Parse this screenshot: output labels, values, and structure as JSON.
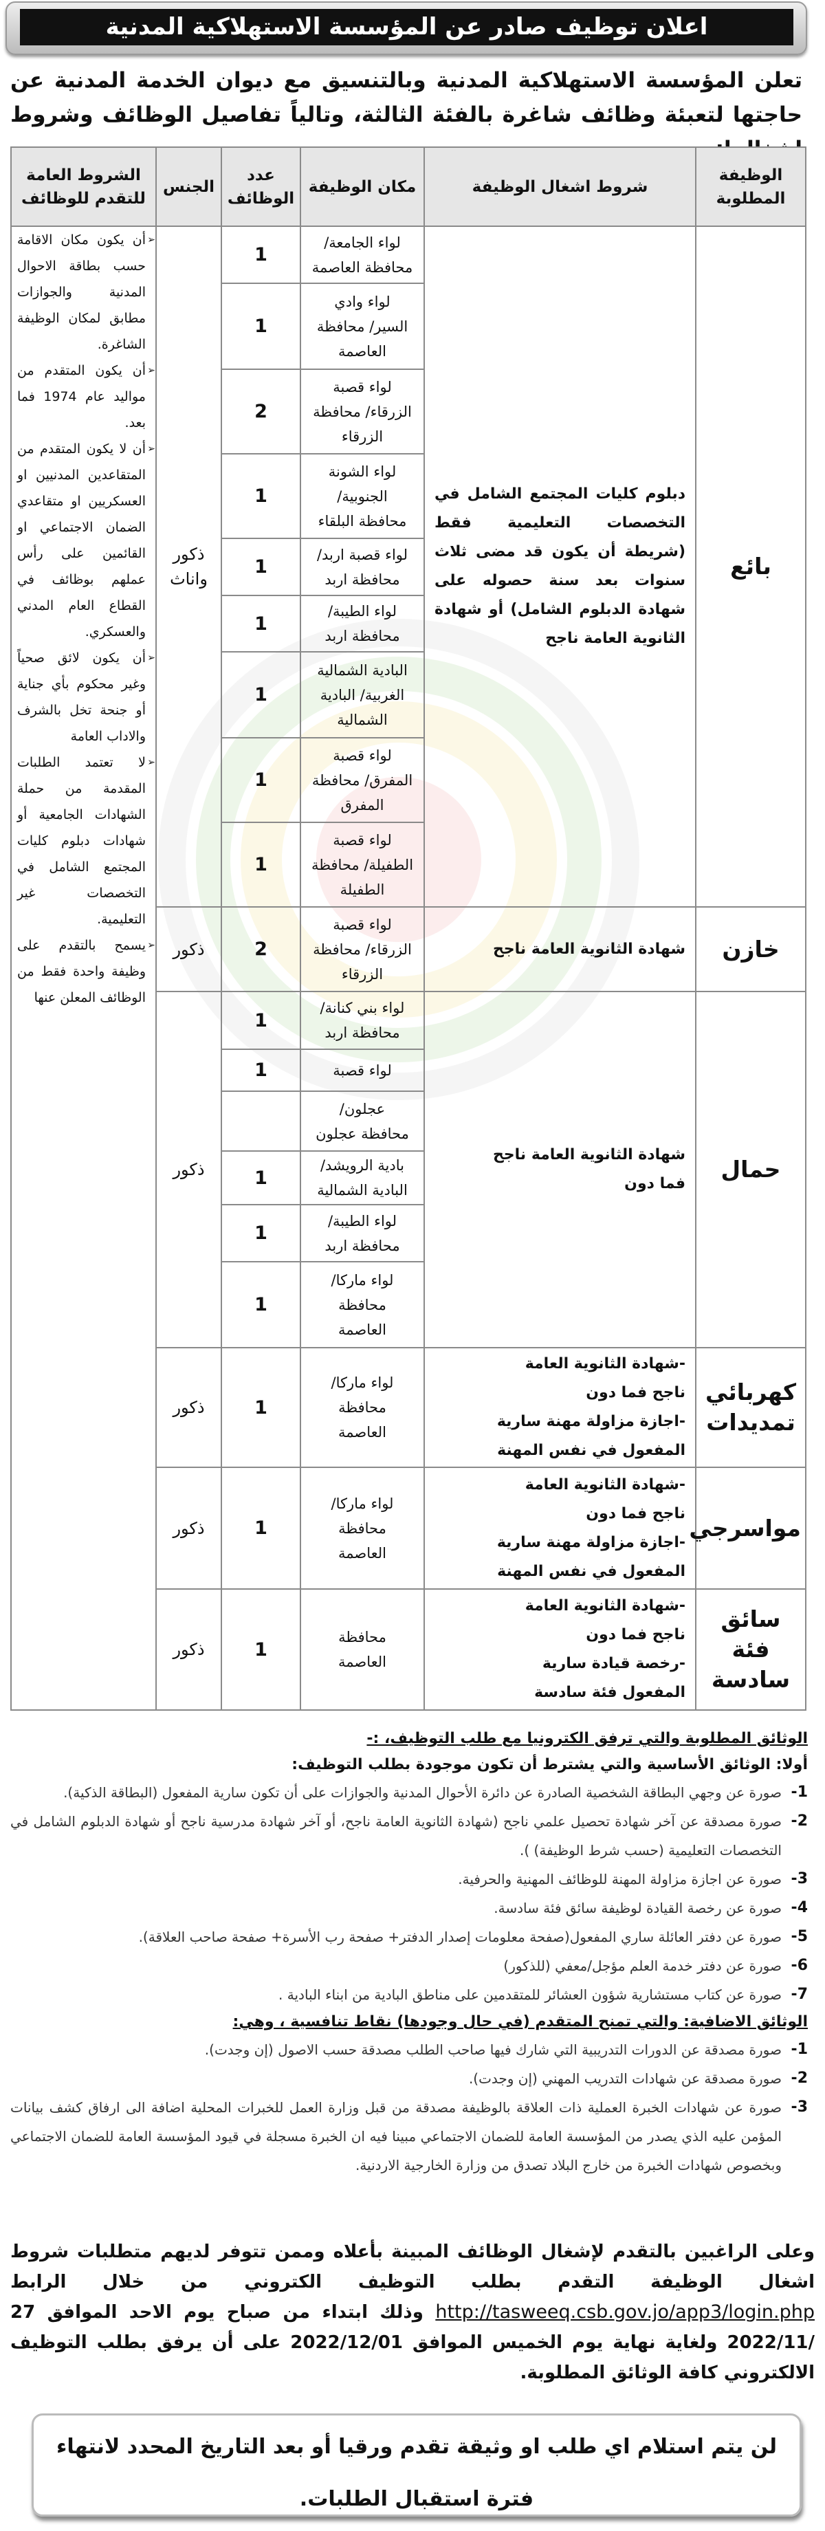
{
  "header": {
    "title": "اعلان توظيف صادر عن المؤسسة الاستهلاكية المدنية"
  },
  "intro": "تعلن المؤسسة الاستهلاكية المدنية وبالتنسيق مع ديوان الخدمة المدنية عن حاجتها لتعبئة وظائف شاغرة بالفئة الثالثة، وتالياً  تفاصيل الوظائف وشروط اشغالها:",
  "table": {
    "headers": {
      "job": "الوظيفة المطلوبة",
      "conditions": "شروط اشغال الوظيفة",
      "place": "مكان الوظيفة",
      "count": "عدد الوظائف",
      "gender": "الجنس",
      "general": "الشروط العامة للتقدم للوظائف"
    },
    "general_conditions": [
      "أن يكون مكان الاقامة حسب بطاقة الاحوال المدنية والجوازات مطابق لمكان الوظيفة الشاغرة.",
      "أن يكون المتقدم من مواليد عام 1974 فما بعد.",
      "أن لا يكون المتقدم من المتقاعدين المدنيين او العسكريين او متقاعدي الضمان الاجتماعي او القائمين على رأس عملهم بوظائف في القطاع العام المدني والعسكري.",
      "أن يكون لائق صحياً وغير محكوم بأي جناية أو جنحة تخل بالشرف والاداب العامة",
      "لا تعتمد الطلبات المقدمة من حملة الشهادات الجامعية أو شهادات دبلوم كليات المجتمع الشامل في التخصصات غير التعليمية.",
      "يسمح بالتقدم على وظيفة واحدة فقط من الوظائف المعلن عنها"
    ],
    "jobs": [
      {
        "title": "بائع",
        "conditions": "دبلوم كليات المجتمع الشامل في التخصصات التعليمية فقط (شريطة أن يكون قد مضى ثلاث سنوات بعد سنة حصوله على شهادة الدبلوم الشامل) أو شهادة الثانوية العامة ناجح",
        "gender": "ذكور\nواناث",
        "locations": [
          {
            "place": "لواء الجامعة/\nمحافظة العاصمة",
            "count": "1"
          },
          {
            "place": "لواء وادي\nالسير/ محافظة\nالعاصمة",
            "count": "1"
          },
          {
            "place": "لواء قصبة\nالزرقاء/ محافظة\nالزرقاء",
            "count": "2"
          },
          {
            "place": "لواء الشونة\nالجنوبية/\nمحافظة البلقاء",
            "count": "1"
          },
          {
            "place": "لواء قصبة اربد/\nمحافظة اربد",
            "count": "1"
          },
          {
            "place": "لواء الطيبة/\nمحافظة اربد",
            "count": "1"
          },
          {
            "place": "البادية الشمالية\nالغربية/ البادية\nالشمالية",
            "count": "1"
          },
          {
            "place": "لواء قصبة\nالمفرق/ محافظة\nالمفرق",
            "count": "1"
          },
          {
            "place": "لواء قصبة\nالطفيلة/ محافظة\nالطفيلة",
            "count": "1"
          }
        ]
      },
      {
        "title": "خازن",
        "conditions": "شهادة الثانوية العامة ناجح",
        "gender": "ذكور",
        "locations": [
          {
            "place": "لواء قصبة\nالزرقاء/ محافظة\nالزرقاء",
            "count": "2"
          }
        ]
      },
      {
        "title": "حمال",
        "conditions": "شهادة الثانوية العامة ناجح\nفما دون",
        "gender": "ذكور",
        "locations": [
          {
            "place": "لواء بني كنانة/\nمحافظة اربد",
            "count": "1"
          },
          {
            "place": "لواء قصبة",
            "count": "1"
          },
          {
            "place": "عجلون/\nمحافظة عجلون",
            "count": ""
          },
          {
            "place": "بادية الرويشد/\nالبادية الشمالية",
            "count": "1"
          },
          {
            "place": "لواء الطيبة/\nمحافظة اربد",
            "count": "1"
          },
          {
            "place": "لواء ماركا/\nمحافظة\nالعاصمة",
            "count": "1"
          }
        ]
      },
      {
        "title": "كهربائي\nتمديدات",
        "conditions": "-شهادة الثانوية العامة\nناجح فما دون\n-اجازة مزاولة مهنة سارية\nالمفعول في نفس المهنة",
        "gender": "ذكور",
        "locations": [
          {
            "place": "لواء ماركا/\nمحافظة\nالعاصمة",
            "count": "1"
          }
        ]
      },
      {
        "title": "مواسرجي",
        "conditions": "-شهادة الثانوية العامة\nناجح فما دون\n-اجازة مزاولة مهنة سارية\nالمفعول في نفس المهنة",
        "gender": "ذكور",
        "locations": [
          {
            "place": "لواء ماركا/\nمحافظة\nالعاصمة",
            "count": "1"
          }
        ]
      },
      {
        "title": "سائق فئة\nسادسة",
        "conditions": "-شهادة الثانوية العامة\nناجح فما دون\n-رخصة قيادة سارية\nالمفعول فئة سادسة",
        "gender": "ذكور",
        "locations": [
          {
            "place": "محافظة\nالعاصمة",
            "count": "1"
          }
        ]
      }
    ]
  },
  "documents": {
    "title": "الوثائق المطلوبة  والتي ترفق الكترونيا مع طلب التوظيف، :-",
    "basic_heading": "أولا: الوثائق الأساسية والتي يشترط أن تكون موجودة بطلب التوظيف:",
    "basic_items": [
      {
        "num": "1-",
        "text": "صورة عن وجهي البطاقة الشخصية الصادرة عن دائرة الأحوال المدنية والجوازات على أن تكون سارية المفعول (البطاقة الذكية)."
      },
      {
        "num": "2-",
        "text": "صورة مصدقة عن آخر شهادة تحصيل علمي ناجح (شهادة الثانوية العامة ناجح، أو آخر شهادة مدرسية ناجح أو شهادة الدبلوم الشامل في التخصصات التعليمية (حسب شرط الوظيفة) )."
      },
      {
        "num": "3-",
        "text": "صورة عن اجازة مزاولة المهنة للوظائف المهنية والحرفية."
      },
      {
        "num": "4-",
        "text": "صورة عن رخصة القيادة لوظيفة سائق فئة سادسة."
      },
      {
        "num": "5-",
        "text": "صورة عن دفتر العائلة ساري المفعول(صفحة معلومات إصدار الدفتر+ صفحة رب الأسرة+ صفحة صاحب العلاقة)."
      },
      {
        "num": "6-",
        "text": "صورة عن دفتر خدمة العلم مؤجل/معفي (للذكور)"
      },
      {
        "num": "7-",
        "text": "صورة عن كتاب مستشارية شؤون العشائر للمتقدمين على مناطق البادية من ابناء البادية ."
      }
    ],
    "additional_heading": "الوثائق الاضافية:  والتي تمنح المتقدم (في حال وجودها) نقاط تنافسية ، وهي:",
    "additional_items": [
      {
        "num": "1-",
        "text": "صورة مصدقة عن الدورات التدريبية التي شارك فيها صاحب الطلب مصدقة حسب الاصول (إن وجدت)."
      },
      {
        "num": "2-",
        "text": "صورة مصدقة عن شهادات التدريب المهني (إن وجدت)."
      },
      {
        "num": "3-",
        "text": "صورة عن شهادات الخبرة العملية ذات العلاقة بالوظيفة مصدقة من قبل وزارة العمل للخبرات المحلية اضافة الى ارفاق كشف بيانات المؤمن عليه الذي يصدر من المؤسسة العامة للضمان الاجتماعي مبينا فيه ان الخبرة مسجلة في قيود المؤسسة العامة للضمان الاجتماعي وبخصوص شهادات الخبرة من خارج البلاد تصدق من وزارة الخارجية الاردنية."
      }
    ]
  },
  "final": {
    "part1": "وعلى الراغبين بالتقدم لإشغال الوظائف المبينة بأعلاه وممن تتوفر لديهم متطلبات شروط اشغال الوظيفة التقدم بطلب التوظيف الكتروني من خلال الرابط",
    "link": "http://tasweeq.csb.gov.jo/app3/login.php",
    "part2": "وذلك ابتداء من صباح يوم الاحد الموافق 27 /2022/11 ولغاية نهاية يوم الخميس الموافق 2022/12/01 على أن يرفق بطلب التوظيف الالكتروني كافة الوثائق المطلوبة."
  },
  "notice": "لن يتم استلام اي طلب او وثيقة تقدم ورقيا أو بعد التاريخ المحدد لانتهاء فترة استقبال الطلبات.",
  "colors": {
    "banner": "#111111",
    "border": "#8a8a8a",
    "header_bg": "#e6e6e6"
  }
}
